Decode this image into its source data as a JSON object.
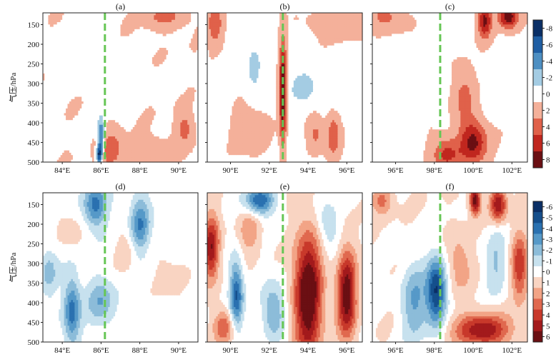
{
  "chart_data": [
    {
      "type": "heatmap",
      "panel": "(a)",
      "row": 1,
      "ylabel": "气压/hPa",
      "yticks": [
        150,
        200,
        250,
        300,
        350,
        400,
        450,
        500
      ],
      "ylim": [
        500,
        120
      ],
      "xticks": [
        "84°E",
        "86°E",
        "88°E",
        "90°E"
      ],
      "xlim": [
        83.0,
        91.0
      ],
      "marker_lon": 86.2,
      "hotspots": [
        {
          "lon": 86.0,
          "p": 440,
          "v": -7,
          "sx": 0.12,
          "sp": 35
        },
        {
          "lon": 85.9,
          "p": 480,
          "v": -8,
          "sx": 0.1,
          "sp": 15
        },
        {
          "lon": 86.5,
          "p": 470,
          "v": 4,
          "sx": 0.4,
          "sp": 30
        },
        {
          "lon": 89.3,
          "p": 130,
          "v": 3,
          "sx": 0.7,
          "sp": 20
        },
        {
          "lon": 90.3,
          "p": 415,
          "v": 3,
          "sx": 0.3,
          "sp": 30
        },
        {
          "lon": 87.5,
          "p": 300,
          "v": -0.8,
          "sx": 1.5,
          "sp": 25
        },
        {
          "lon": 84.5,
          "p": 230,
          "v": -0.7,
          "sx": 1.5,
          "sp": 30
        },
        {
          "lon": 88.5,
          "p": 470,
          "v": 1.5,
          "sx": 0.8,
          "sp": 25
        }
      ],
      "base": 0.8
    },
    {
      "type": "heatmap",
      "panel": "(b)",
      "row": 1,
      "yticks": [
        150,
        200,
        250,
        300,
        350,
        400,
        450,
        500
      ],
      "ylim": [
        500,
        120
      ],
      "xticks": [
        "90°E",
        "92°E",
        "94°E",
        "96°E"
      ],
      "xlim": [
        88.8,
        96.8
      ],
      "marker_lon": 92.7,
      "hotspots": [
        {
          "lon": 92.7,
          "p": 320,
          "v": 9,
          "sx": 0.13,
          "sp": 90
        },
        {
          "lon": 89.2,
          "p": 150,
          "v": 4,
          "sx": 0.3,
          "sp": 35
        },
        {
          "lon": 95.3,
          "p": 430,
          "v": 4,
          "sx": 0.25,
          "sp": 40
        },
        {
          "lon": 94.4,
          "p": 430,
          "v": 3,
          "sx": 0.3,
          "sp": 30
        },
        {
          "lon": 91.2,
          "p": 260,
          "v": -2.5,
          "sx": 0.25,
          "sp": 40
        },
        {
          "lon": 93.8,
          "p": 310,
          "v": -2.5,
          "sx": 0.5,
          "sp": 30
        },
        {
          "lon": 95.5,
          "p": 320,
          "v": -1.5,
          "sx": 0.4,
          "sp": 30
        },
        {
          "lon": 91.0,
          "p": 420,
          "v": 2.5,
          "sx": 0.6,
          "sp": 40
        },
        {
          "lon": 95.5,
          "p": 150,
          "v": 2.5,
          "sx": 1.0,
          "sp": 25
        }
      ],
      "base": 0.5
    },
    {
      "type": "heatmap",
      "panel": "(c)",
      "row": 1,
      "yticks": [
        150,
        200,
        250,
        300,
        350,
        400,
        450,
        500
      ],
      "ylim": [
        500,
        120
      ],
      "xticks": [
        "96°E",
        "98°E",
        "100°E",
        "102°E"
      ],
      "xlim": [
        94.8,
        102.8
      ],
      "marker_lon": 98.3,
      "hotspots": [
        {
          "lon": 100.6,
          "p": 140,
          "v": 7,
          "sx": 0.25,
          "sp": 30
        },
        {
          "lon": 101.8,
          "p": 130,
          "v": 8,
          "sx": 0.35,
          "sp": 20
        },
        {
          "lon": 100.0,
          "p": 450,
          "v": 7,
          "sx": 0.5,
          "sp": 40
        },
        {
          "lon": 99.5,
          "p": 330,
          "v": 3,
          "sx": 0.4,
          "sp": 50
        },
        {
          "lon": 98.6,
          "p": 480,
          "v": 5,
          "sx": 0.5,
          "sp": 30
        },
        {
          "lon": 95.5,
          "p": 130,
          "v": 3,
          "sx": 0.6,
          "sp": 25
        },
        {
          "lon": 96.0,
          "p": 270,
          "v": -1.2,
          "sx": 0.8,
          "sp": 40
        },
        {
          "lon": 101.5,
          "p": 310,
          "v": -1.0,
          "sx": 0.6,
          "sp": 40
        }
      ],
      "base": 0.6
    },
    {
      "type": "heatmap",
      "panel": "(d)",
      "row": 2,
      "ylabel": "气压/hPa",
      "yticks": [
        150,
        200,
        250,
        300,
        350,
        400,
        450,
        500
      ],
      "ylim": [
        500,
        120
      ],
      "xticks": [
        "84°E",
        "86°E",
        "88°E",
        "90°E"
      ],
      "xlim": [
        83.0,
        91.0
      ],
      "marker_lon": 86.2,
      "hotspots": [
        {
          "lon": 84.5,
          "p": 420,
          "v": -4,
          "sx": 0.3,
          "sp": 60
        },
        {
          "lon": 85.7,
          "p": 150,
          "v": -4,
          "sx": 0.4,
          "sp": 40
        },
        {
          "lon": 88.0,
          "p": 200,
          "v": -3.5,
          "sx": 0.35,
          "sp": 50
        },
        {
          "lon": 86.0,
          "p": 400,
          "v": -2.5,
          "sx": 0.5,
          "sp": 40
        },
        {
          "lon": 83.3,
          "p": 320,
          "v": -2,
          "sx": 0.3,
          "sp": 40
        },
        {
          "lon": 87.3,
          "p": 270,
          "v": 1.2,
          "sx": 0.4,
          "sp": 40
        },
        {
          "lon": 89.5,
          "p": 330,
          "v": 1.0,
          "sx": 0.6,
          "sp": 50
        },
        {
          "lon": 84.3,
          "p": 210,
          "v": 1.0,
          "sx": 0.5,
          "sp": 40
        }
      ],
      "base": 0.0
    },
    {
      "type": "heatmap",
      "panel": "(e)",
      "row": 2,
      "yticks": [
        150,
        200,
        250,
        300,
        350,
        400,
        450,
        500
      ],
      "ylim": [
        500,
        120
      ],
      "xticks": [
        "90°E",
        "92°E",
        "94°E",
        "96°E"
      ],
      "xlim": [
        88.8,
        96.8
      ],
      "marker_lon": 92.7,
      "hotspots": [
        {
          "lon": 94.0,
          "p": 380,
          "v": 7,
          "sx": 0.5,
          "sp": 110
        },
        {
          "lon": 96.0,
          "p": 380,
          "v": 6,
          "sx": 0.35,
          "sp": 80
        },
        {
          "lon": 89.0,
          "p": 260,
          "v": 5,
          "sx": 0.3,
          "sp": 60
        },
        {
          "lon": 90.3,
          "p": 380,
          "v": -5,
          "sx": 0.25,
          "sp": 60
        },
        {
          "lon": 91.5,
          "p": 140,
          "v": -5,
          "sx": 0.5,
          "sp": 25
        },
        {
          "lon": 92.2,
          "p": 420,
          "v": -3,
          "sx": 0.4,
          "sp": 50
        },
        {
          "lon": 95.0,
          "p": 200,
          "v": -2,
          "sx": 0.4,
          "sp": 40
        },
        {
          "lon": 89.6,
          "p": 460,
          "v": 3,
          "sx": 0.4,
          "sp": 30
        },
        {
          "lon": 91.0,
          "p": 220,
          "v": 2,
          "sx": 0.4,
          "sp": 40
        }
      ],
      "base": 0.3
    },
    {
      "type": "heatmap",
      "panel": "(f)",
      "row": 2,
      "yticks": [
        150,
        200,
        250,
        300,
        350,
        400,
        450,
        500
      ],
      "ylim": [
        500,
        120
      ],
      "xticks": [
        "96°E",
        "98°E",
        "100°E",
        "102°E"
      ],
      "xlim": [
        94.8,
        102.8
      ],
      "marker_lon": 98.3,
      "hotspots": [
        {
          "lon": 98.1,
          "p": 370,
          "v": -6,
          "sx": 0.35,
          "sp": 60
        },
        {
          "lon": 97.0,
          "p": 400,
          "v": -3,
          "sx": 0.5,
          "sp": 70
        },
        {
          "lon": 100.1,
          "p": 140,
          "v": 6,
          "sx": 0.2,
          "sp": 25
        },
        {
          "lon": 101.3,
          "p": 150,
          "v": 5,
          "sx": 0.3,
          "sp": 30
        },
        {
          "lon": 102.4,
          "p": 310,
          "v": 4,
          "sx": 0.3,
          "sp": 60
        },
        {
          "lon": 100.5,
          "p": 470,
          "v": 5,
          "sx": 1.0,
          "sp": 30
        },
        {
          "lon": 99.3,
          "p": 300,
          "v": 2,
          "sx": 0.4,
          "sp": 50
        },
        {
          "lon": 101.2,
          "p": 300,
          "v": -2,
          "sx": 0.4,
          "sp": 60
        },
        {
          "lon": 95.3,
          "p": 140,
          "v": 2.5,
          "sx": 0.4,
          "sp": 25
        }
      ],
      "base": 0.4
    }
  ],
  "colorbars": [
    {
      "row": 1,
      "tick_labels": [
        "-8",
        "-6",
        "-4",
        "-2",
        "0",
        "2",
        "4",
        "6",
        "8"
      ],
      "levels": [
        -9,
        -7,
        -5,
        -3,
        -1,
        1,
        3,
        5,
        7,
        9
      ],
      "colors": [
        "#0a2f66",
        "#1f5ea3",
        "#4d8fc2",
        "#a4cce3",
        "#ffffff",
        "#f4b09a",
        "#e0614a",
        "#c0271f",
        "#6b0f13"
      ]
    },
    {
      "row": 2,
      "tick_labels": [
        "-6",
        "-5",
        "-4",
        "-3",
        "-2",
        "-1",
        "0",
        "1",
        "2",
        "3",
        "4",
        "5",
        "6"
      ],
      "levels": [
        -6.5,
        -5.5,
        -4.5,
        -3.5,
        -2.5,
        -1.5,
        -0.5,
        0.5,
        1.5,
        2.5,
        3.5,
        4.5,
        5.5,
        6.5
      ],
      "colors": [
        "#0a2f66",
        "#154f8c",
        "#2a71b0",
        "#5699c8",
        "#8cbcd9",
        "#c7e1ee",
        "#ffffff",
        "#f9d4c2",
        "#f2a486",
        "#e0694f",
        "#c8392b",
        "#a31a1c",
        "#6b0f13"
      ]
    }
  ],
  "colors": {
    "marker_line": "#66c655",
    "axis": "#222222"
  }
}
